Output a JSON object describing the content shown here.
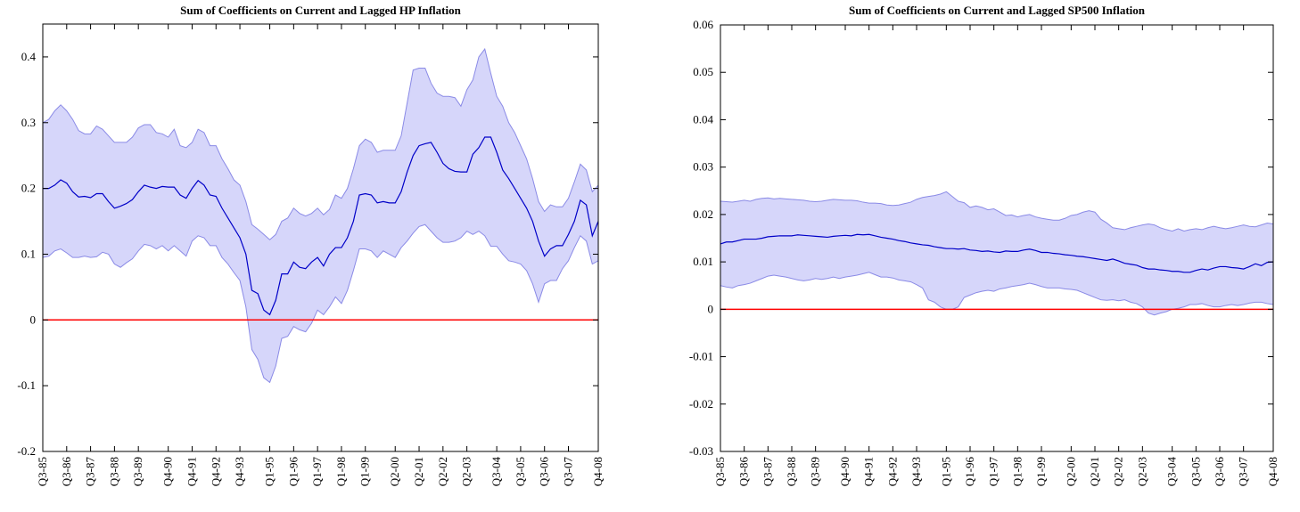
{
  "chart_data": [
    {
      "type": "line",
      "title": "Sum of Coefficients on Current and Lagged HP Inflation",
      "categories": [
        "Q3-85",
        null,
        null,
        null,
        "Q3-86",
        null,
        null,
        null,
        "Q3-87",
        null,
        null,
        null,
        "Q3-88",
        null,
        null,
        null,
        "Q3-89",
        null,
        null,
        null,
        null,
        "Q4-90",
        null,
        null,
        null,
        "Q4-91",
        null,
        null,
        null,
        "Q4-92",
        null,
        null,
        null,
        "Q4-93",
        null,
        null,
        null,
        null,
        "Q1-95",
        null,
        null,
        null,
        "Q1-96",
        null,
        null,
        null,
        "Q1-97",
        null,
        null,
        null,
        "Q1-98",
        null,
        null,
        null,
        "Q1-99",
        null,
        null,
        null,
        null,
        "Q2-00",
        null,
        null,
        null,
        "Q2-01",
        null,
        null,
        null,
        "Q2-02",
        null,
        null,
        null,
        "Q2-03",
        null,
        null,
        null,
        null,
        "Q3-04",
        null,
        null,
        null,
        "Q3-05",
        null,
        null,
        null,
        "Q3-06",
        null,
        null,
        null,
        "Q3-07",
        null,
        null,
        null,
        null,
        "Q4-08"
      ],
      "series": [
        {
          "color": "#0000c8",
          "values": [
            0.2,
            0.2,
            0.205,
            0.213,
            0.208,
            0.195,
            0.187,
            0.188,
            0.186,
            0.192,
            0.192,
            0.18,
            0.17,
            0.173,
            0.177,
            0.183,
            0.195,
            0.205,
            0.202,
            0.2,
            0.203,
            0.202,
            0.202,
            0.19,
            0.185,
            0.2,
            0.212,
            0.205,
            0.19,
            0.188,
            0.17,
            0.155,
            0.14,
            0.125,
            0.1,
            0.045,
            0.04,
            0.015,
            0.008,
            0.03,
            0.07,
            0.07,
            0.088,
            0.08,
            0.078,
            0.088,
            0.095,
            0.082,
            0.1,
            0.11,
            0.11,
            0.125,
            0.15,
            0.19,
            0.192,
            0.19,
            0.178,
            0.18,
            0.178,
            0.178,
            0.195,
            0.225,
            0.25,
            0.265,
            0.268,
            0.27,
            0.255,
            0.238,
            0.23,
            0.226,
            0.225,
            0.225,
            0.252,
            0.262,
            0.278,
            0.278,
            0.255,
            0.228,
            0.215,
            0.2,
            0.185,
            0.17,
            0.15,
            0.12,
            0.097,
            0.108,
            0.113,
            0.113,
            0.13,
            0.15,
            0.182,
            0.175,
            0.128,
            0.15
          ]
        }
      ],
      "band": {
        "color": "#d6d6fa",
        "edge_color": "#8a8ae6",
        "upper": [
          0.3,
          0.305,
          0.318,
          0.327,
          0.318,
          0.305,
          0.288,
          0.283,
          0.283,
          0.295,
          0.29,
          0.28,
          0.27,
          0.27,
          0.27,
          0.278,
          0.292,
          0.297,
          0.297,
          0.285,
          0.283,
          0.278,
          0.29,
          0.265,
          0.262,
          0.27,
          0.29,
          0.285,
          0.265,
          0.265,
          0.245,
          0.23,
          0.213,
          0.205,
          0.18,
          0.145,
          0.138,
          0.13,
          0.122,
          0.13,
          0.15,
          0.155,
          0.17,
          0.162,
          0.158,
          0.162,
          0.17,
          0.16,
          0.168,
          0.19,
          0.185,
          0.2,
          0.23,
          0.265,
          0.275,
          0.27,
          0.255,
          0.258,
          0.258,
          0.258,
          0.28,
          0.33,
          0.38,
          0.383,
          0.383,
          0.36,
          0.345,
          0.34,
          0.34,
          0.338,
          0.325,
          0.35,
          0.365,
          0.4,
          0.412,
          0.375,
          0.34,
          0.325,
          0.3,
          0.285,
          0.265,
          0.245,
          0.215,
          0.18,
          0.165,
          0.175,
          0.172,
          0.172,
          0.185,
          0.21,
          0.237,
          0.228,
          0.195,
          0.205
        ],
        "lower": [
          0.095,
          0.097,
          0.105,
          0.108,
          0.102,
          0.095,
          0.095,
          0.097,
          0.095,
          0.096,
          0.103,
          0.1,
          0.085,
          0.08,
          0.087,
          0.093,
          0.105,
          0.115,
          0.113,
          0.108,
          0.113,
          0.105,
          0.113,
          0.105,
          0.097,
          0.12,
          0.128,
          0.125,
          0.113,
          0.113,
          0.095,
          0.085,
          0.072,
          0.06,
          0.02,
          -0.045,
          -0.06,
          -0.088,
          -0.095,
          -0.07,
          -0.028,
          -0.025,
          -0.01,
          -0.015,
          -0.018,
          -0.005,
          0.015,
          0.008,
          0.02,
          0.035,
          0.025,
          0.045,
          0.075,
          0.108,
          0.108,
          0.105,
          0.095,
          0.105,
          0.1,
          0.095,
          0.11,
          0.12,
          0.132,
          0.142,
          0.145,
          0.135,
          0.125,
          0.118,
          0.118,
          0.12,
          0.125,
          0.135,
          0.13,
          0.135,
          0.128,
          0.112,
          0.112,
          0.1,
          0.09,
          0.088,
          0.085,
          0.075,
          0.055,
          0.027,
          0.055,
          0.06,
          0.06,
          0.078,
          0.09,
          0.11,
          0.128,
          0.12,
          0.085,
          0.09
        ]
      },
      "hline": {
        "value": 0,
        "color": "#ff0000"
      },
      "ylim": [
        -0.2,
        0.45
      ],
      "yticks": [
        -0.2,
        -0.1,
        0,
        0.1,
        0.2,
        0.3,
        0.4
      ]
    },
    {
      "type": "line",
      "title": "Sum of Coefficients on Current and Lagged SP500 Inflation",
      "categories": [
        "Q3-85",
        null,
        null,
        null,
        "Q3-86",
        null,
        null,
        null,
        "Q3-87",
        null,
        null,
        null,
        "Q3-88",
        null,
        null,
        null,
        "Q3-89",
        null,
        null,
        null,
        null,
        "Q4-90",
        null,
        null,
        null,
        "Q4-91",
        null,
        null,
        null,
        "Q4-92",
        null,
        null,
        null,
        "Q4-93",
        null,
        null,
        null,
        null,
        "Q1-95",
        null,
        null,
        null,
        "Q1-96",
        null,
        null,
        null,
        "Q1-97",
        null,
        null,
        null,
        "Q1-98",
        null,
        null,
        null,
        "Q1-99",
        null,
        null,
        null,
        null,
        "Q2-00",
        null,
        null,
        null,
        "Q2-01",
        null,
        null,
        null,
        "Q2-02",
        null,
        null,
        null,
        "Q2-03",
        null,
        null,
        null,
        null,
        "Q3-04",
        null,
        null,
        null,
        "Q3-05",
        null,
        null,
        null,
        "Q3-06",
        null,
        null,
        null,
        "Q3-07",
        null,
        null,
        null,
        null,
        "Q4-08"
      ],
      "series": [
        {
          "color": "#0000c8",
          "values": [
            0.0138,
            0.0142,
            0.0142,
            0.0145,
            0.0148,
            0.0148,
            0.0148,
            0.015,
            0.0153,
            0.0154,
            0.0155,
            0.0155,
            0.0155,
            0.0157,
            0.0156,
            0.0155,
            0.0154,
            0.0153,
            0.0152,
            0.0154,
            0.0155,
            0.0156,
            0.0155,
            0.0158,
            0.0157,
            0.0158,
            0.0155,
            0.0152,
            0.015,
            0.0148,
            0.0145,
            0.0143,
            0.014,
            0.0138,
            0.0136,
            0.0135,
            0.0132,
            0.013,
            0.0128,
            0.0128,
            0.0127,
            0.0128,
            0.0125,
            0.0124,
            0.0122,
            0.0123,
            0.0121,
            0.012,
            0.0123,
            0.0122,
            0.0122,
            0.0125,
            0.0127,
            0.0124,
            0.012,
            0.012,
            0.0118,
            0.0117,
            0.0115,
            0.0114,
            0.0112,
            0.0111,
            0.0109,
            0.0107,
            0.0105,
            0.0103,
            0.0106,
            0.0102,
            0.0097,
            0.0095,
            0.0093,
            0.0088,
            0.0085,
            0.0085,
            0.0083,
            0.0082,
            0.008,
            0.008,
            0.0078,
            0.0078,
            0.0082,
            0.0085,
            0.0083,
            0.0087,
            0.009,
            0.009,
            0.0088,
            0.0087,
            0.0085,
            0.009,
            0.0096,
            0.0092,
            0.0099,
            0.01
          ]
        }
      ],
      "band": {
        "color": "#d6d6fa",
        "edge_color": "#8a8ae6",
        "upper": [
          0.0228,
          0.0227,
          0.0226,
          0.0228,
          0.023,
          0.0228,
          0.0232,
          0.0234,
          0.0235,
          0.0233,
          0.0234,
          0.0233,
          0.0232,
          0.0231,
          0.023,
          0.0228,
          0.0227,
          0.0228,
          0.023,
          0.0232,
          0.0231,
          0.023,
          0.023,
          0.0229,
          0.0226,
          0.0224,
          0.0224,
          0.0223,
          0.022,
          0.0219,
          0.022,
          0.0223,
          0.0226,
          0.0232,
          0.0236,
          0.0238,
          0.024,
          0.0243,
          0.0248,
          0.0238,
          0.0228,
          0.0225,
          0.0215,
          0.0218,
          0.0215,
          0.021,
          0.0212,
          0.0205,
          0.0198,
          0.0199,
          0.0195,
          0.0198,
          0.02,
          0.0195,
          0.0192,
          0.019,
          0.0188,
          0.0188,
          0.0192,
          0.0198,
          0.02,
          0.0205,
          0.0208,
          0.0205,
          0.019,
          0.0182,
          0.0172,
          0.017,
          0.0168,
          0.0172,
          0.0175,
          0.0178,
          0.018,
          0.0178,
          0.0172,
          0.0168,
          0.0165,
          0.017,
          0.0165,
          0.0168,
          0.017,
          0.0168,
          0.0172,
          0.0175,
          0.0172,
          0.017,
          0.0172,
          0.0175,
          0.0178,
          0.0175,
          0.0174,
          0.0178,
          0.0182,
          0.018
        ],
        "lower": [
          0.005,
          0.0047,
          0.0045,
          0.005,
          0.0052,
          0.0055,
          0.006,
          0.0065,
          0.007,
          0.0072,
          0.007,
          0.0068,
          0.0065,
          0.0062,
          0.006,
          0.0062,
          0.0065,
          0.0063,
          0.0065,
          0.0068,
          0.0065,
          0.0068,
          0.007,
          0.0072,
          0.0075,
          0.0078,
          0.0073,
          0.0068,
          0.0068,
          0.0066,
          0.0062,
          0.006,
          0.0058,
          0.0052,
          0.0045,
          0.002,
          0.0015,
          0.0005,
          0,
          0,
          0.0005,
          0.0025,
          0.003,
          0.0035,
          0.0038,
          0.004,
          0.0038,
          0.0043,
          0.0045,
          0.0048,
          0.005,
          0.0052,
          0.0055,
          0.0052,
          0.0048,
          0.0045,
          0.0045,
          0.0045,
          0.0043,
          0.0042,
          0.004,
          0.0035,
          0.003,
          0.0025,
          0.002,
          0.0019,
          0.002,
          0.0018,
          0.002,
          0.0015,
          0.0012,
          0.0005,
          -0.0008,
          -0.0012,
          -0.0008,
          -0.0005,
          0,
          0.0002,
          0.0005,
          0.001,
          0.001,
          0.0012,
          0.0008,
          0.0005,
          0.0005,
          0.0008,
          0.001,
          0.0008,
          0.001,
          0.0013,
          0.0015,
          0.0015,
          0.0012,
          0.001
        ]
      },
      "hline": {
        "value": 0,
        "color": "#ff0000"
      },
      "ylim": [
        -0.03,
        0.06
      ],
      "yticks": [
        -0.03,
        -0.02,
        -0.01,
        0,
        0.01,
        0.02,
        0.03,
        0.04,
        0.05,
        0.06
      ]
    }
  ]
}
